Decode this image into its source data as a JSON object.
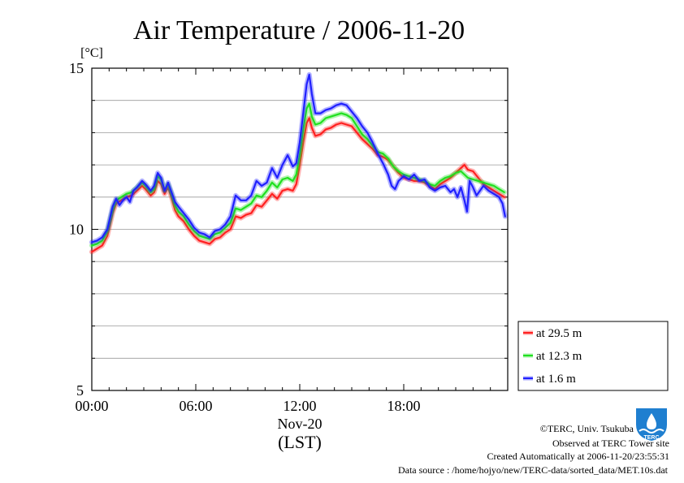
{
  "chart_data": {
    "type": "line",
    "title": "Air Temperature / 2006-11-20",
    "ylabel": "[°C]",
    "xlabel_date": "Nov-20",
    "xlabel_unit": "(LST)",
    "xlim": [
      0,
      24
    ],
    "ylim": [
      5,
      15
    ],
    "x_ticks": [
      {
        "value": 0,
        "label": "00:00"
      },
      {
        "value": 6,
        "label": "06:00"
      },
      {
        "value": 12,
        "label": "12:00"
      },
      {
        "value": 18,
        "label": "18:00"
      }
    ],
    "y_ticks": [
      {
        "value": 5,
        "label": "5"
      },
      {
        "value": 10,
        "label": "10"
      },
      {
        "value": 15,
        "label": "15"
      }
    ],
    "grid": true,
    "legend_position": "bottom-right, outside plot",
    "series": [
      {
        "name": "at 29.5 m",
        "color": "#ff2020",
        "points": [
          [
            0,
            9.3
          ],
          [
            0.3,
            9.4
          ],
          [
            0.6,
            9.5
          ],
          [
            0.9,
            9.8
          ],
          [
            1.2,
            10.5
          ],
          [
            1.4,
            10.8
          ],
          [
            1.7,
            10.9
          ],
          [
            2.0,
            11.0
          ],
          [
            2.3,
            11.05
          ],
          [
            2.6,
            11.2
          ],
          [
            2.9,
            11.35
          ],
          [
            3.1,
            11.25
          ],
          [
            3.4,
            11.05
          ],
          [
            3.6,
            11.15
          ],
          [
            3.8,
            11.5
          ],
          [
            4.0,
            11.4
          ],
          [
            4.2,
            11.1
          ],
          [
            4.4,
            11.3
          ],
          [
            4.6,
            11.0
          ],
          [
            4.8,
            10.6
          ],
          [
            5.0,
            10.4
          ],
          [
            5.3,
            10.25
          ],
          [
            5.6,
            10.0
          ],
          [
            5.9,
            9.8
          ],
          [
            6.2,
            9.65
          ],
          [
            6.5,
            9.6
          ],
          [
            6.8,
            9.55
          ],
          [
            7.1,
            9.7
          ],
          [
            7.4,
            9.75
          ],
          [
            7.7,
            9.9
          ],
          [
            8.0,
            10.0
          ],
          [
            8.3,
            10.4
          ],
          [
            8.6,
            10.35
          ],
          [
            8.9,
            10.45
          ],
          [
            9.2,
            10.5
          ],
          [
            9.5,
            10.75
          ],
          [
            9.8,
            10.7
          ],
          [
            10.1,
            10.9
          ],
          [
            10.4,
            11.1
          ],
          [
            10.7,
            10.95
          ],
          [
            11.0,
            11.2
          ],
          [
            11.3,
            11.25
          ],
          [
            11.6,
            11.2
          ],
          [
            11.8,
            11.4
          ],
          [
            12.0,
            12.0
          ],
          [
            12.2,
            12.7
          ],
          [
            12.4,
            13.3
          ],
          [
            12.55,
            13.45
          ],
          [
            12.7,
            13.15
          ],
          [
            12.9,
            12.9
          ],
          [
            13.2,
            12.95
          ],
          [
            13.5,
            13.1
          ],
          [
            13.8,
            13.15
          ],
          [
            14.1,
            13.25
          ],
          [
            14.4,
            13.3
          ],
          [
            14.7,
            13.25
          ],
          [
            15.0,
            13.2
          ],
          [
            15.3,
            13.0
          ],
          [
            15.6,
            12.8
          ],
          [
            15.9,
            12.65
          ],
          [
            16.2,
            12.5
          ],
          [
            16.5,
            12.3
          ],
          [
            16.8,
            12.25
          ],
          [
            17.1,
            12.15
          ],
          [
            17.4,
            11.95
          ],
          [
            17.7,
            11.75
          ],
          [
            18.0,
            11.6
          ],
          [
            18.3,
            11.55
          ],
          [
            18.6,
            11.5
          ],
          [
            18.9,
            11.5
          ],
          [
            19.2,
            11.45
          ],
          [
            19.5,
            11.35
          ],
          [
            19.8,
            11.25
          ],
          [
            20.1,
            11.4
          ],
          [
            20.4,
            11.5
          ],
          [
            20.7,
            11.6
          ],
          [
            21.0,
            11.75
          ],
          [
            21.3,
            11.9
          ],
          [
            21.5,
            12.0
          ],
          [
            21.7,
            11.85
          ],
          [
            22.0,
            11.8
          ],
          [
            22.3,
            11.6
          ],
          [
            22.6,
            11.4
          ],
          [
            22.9,
            11.3
          ],
          [
            23.2,
            11.2
          ],
          [
            23.5,
            11.1
          ],
          [
            23.8,
            11.0
          ]
        ]
      },
      {
        "name": "at 12.3 m",
        "color": "#20e020",
        "points": [
          [
            0,
            9.5
          ],
          [
            0.3,
            9.55
          ],
          [
            0.6,
            9.65
          ],
          [
            0.9,
            9.95
          ],
          [
            1.2,
            10.6
          ],
          [
            1.4,
            10.9
          ],
          [
            1.7,
            11.0
          ],
          [
            2.0,
            11.1
          ],
          [
            2.3,
            11.15
          ],
          [
            2.6,
            11.3
          ],
          [
            2.9,
            11.45
          ],
          [
            3.1,
            11.35
          ],
          [
            3.4,
            11.15
          ],
          [
            3.6,
            11.25
          ],
          [
            3.8,
            11.65
          ],
          [
            4.0,
            11.55
          ],
          [
            4.2,
            11.2
          ],
          [
            4.4,
            11.4
          ],
          [
            4.6,
            11.1
          ],
          [
            4.8,
            10.75
          ],
          [
            5.0,
            10.55
          ],
          [
            5.3,
            10.4
          ],
          [
            5.6,
            10.15
          ],
          [
            5.9,
            9.95
          ],
          [
            6.2,
            9.8
          ],
          [
            6.5,
            9.75
          ],
          [
            6.8,
            9.7
          ],
          [
            7.1,
            9.85
          ],
          [
            7.4,
            9.9
          ],
          [
            7.7,
            10.05
          ],
          [
            8.0,
            10.2
          ],
          [
            8.3,
            10.65
          ],
          [
            8.6,
            10.6
          ],
          [
            8.9,
            10.7
          ],
          [
            9.2,
            10.8
          ],
          [
            9.5,
            11.05
          ],
          [
            9.8,
            11.0
          ],
          [
            10.1,
            11.2
          ],
          [
            10.4,
            11.45
          ],
          [
            10.7,
            11.3
          ],
          [
            11.0,
            11.55
          ],
          [
            11.3,
            11.6
          ],
          [
            11.6,
            11.5
          ],
          [
            11.8,
            11.7
          ],
          [
            12.0,
            12.3
          ],
          [
            12.2,
            13.1
          ],
          [
            12.4,
            13.75
          ],
          [
            12.55,
            13.9
          ],
          [
            12.7,
            13.5
          ],
          [
            12.9,
            13.25
          ],
          [
            13.2,
            13.3
          ],
          [
            13.5,
            13.45
          ],
          [
            13.8,
            13.5
          ],
          [
            14.1,
            13.55
          ],
          [
            14.4,
            13.6
          ],
          [
            14.7,
            13.55
          ],
          [
            15.0,
            13.45
          ],
          [
            15.3,
            13.2
          ],
          [
            15.6,
            12.95
          ],
          [
            15.9,
            12.8
          ],
          [
            16.2,
            12.6
          ],
          [
            16.5,
            12.4
          ],
          [
            16.8,
            12.35
          ],
          [
            17.1,
            12.2
          ],
          [
            17.4,
            11.95
          ],
          [
            17.7,
            11.8
          ],
          [
            18.0,
            11.7
          ],
          [
            18.3,
            11.65
          ],
          [
            18.6,
            11.6
          ],
          [
            18.9,
            11.55
          ],
          [
            19.2,
            11.5
          ],
          [
            19.5,
            11.4
          ],
          [
            19.8,
            11.35
          ],
          [
            20.1,
            11.5
          ],
          [
            20.4,
            11.6
          ],
          [
            20.7,
            11.65
          ],
          [
            21.0,
            11.75
          ],
          [
            21.3,
            11.8
          ],
          [
            21.5,
            11.7
          ],
          [
            21.7,
            11.6
          ],
          [
            22.0,
            11.55
          ],
          [
            22.3,
            11.5
          ],
          [
            22.6,
            11.45
          ],
          [
            22.9,
            11.4
          ],
          [
            23.2,
            11.35
          ],
          [
            23.5,
            11.25
          ],
          [
            23.8,
            11.15
          ]
        ]
      },
      {
        "name": "at 1.6 m",
        "color": "#2020ff",
        "points": [
          [
            0,
            9.6
          ],
          [
            0.3,
            9.65
          ],
          [
            0.6,
            9.75
          ],
          [
            0.9,
            10.0
          ],
          [
            1.2,
            10.7
          ],
          [
            1.4,
            10.95
          ],
          [
            1.6,
            10.75
          ],
          [
            1.8,
            10.9
          ],
          [
            2.0,
            11.0
          ],
          [
            2.2,
            10.85
          ],
          [
            2.4,
            11.2
          ],
          [
            2.6,
            11.3
          ],
          [
            2.9,
            11.5
          ],
          [
            3.1,
            11.4
          ],
          [
            3.4,
            11.2
          ],
          [
            3.6,
            11.35
          ],
          [
            3.8,
            11.75
          ],
          [
            4.0,
            11.6
          ],
          [
            4.2,
            11.2
          ],
          [
            4.4,
            11.45
          ],
          [
            4.6,
            11.15
          ],
          [
            4.8,
            10.85
          ],
          [
            5.0,
            10.7
          ],
          [
            5.3,
            10.5
          ],
          [
            5.6,
            10.3
          ],
          [
            5.9,
            10.05
          ],
          [
            6.2,
            9.9
          ],
          [
            6.5,
            9.85
          ],
          [
            6.8,
            9.75
          ],
          [
            7.1,
            9.95
          ],
          [
            7.4,
            10.0
          ],
          [
            7.7,
            10.15
          ],
          [
            8.0,
            10.4
          ],
          [
            8.3,
            11.05
          ],
          [
            8.6,
            10.9
          ],
          [
            8.9,
            10.9
          ],
          [
            9.2,
            11.05
          ],
          [
            9.5,
            11.5
          ],
          [
            9.8,
            11.35
          ],
          [
            10.1,
            11.45
          ],
          [
            10.4,
            11.9
          ],
          [
            10.7,
            11.6
          ],
          [
            11.0,
            12.0
          ],
          [
            11.3,
            12.3
          ],
          [
            11.6,
            11.95
          ],
          [
            11.8,
            12.05
          ],
          [
            12.0,
            12.7
          ],
          [
            12.2,
            13.6
          ],
          [
            12.4,
            14.5
          ],
          [
            12.55,
            14.8
          ],
          [
            12.7,
            14.2
          ],
          [
            12.9,
            13.6
          ],
          [
            13.2,
            13.6
          ],
          [
            13.5,
            13.7
          ],
          [
            13.8,
            13.75
          ],
          [
            14.1,
            13.85
          ],
          [
            14.4,
            13.9
          ],
          [
            14.7,
            13.85
          ],
          [
            15.0,
            13.65
          ],
          [
            15.3,
            13.45
          ],
          [
            15.6,
            13.2
          ],
          [
            15.9,
            13.0
          ],
          [
            16.2,
            12.7
          ],
          [
            16.5,
            12.35
          ],
          [
            16.8,
            12.05
          ],
          [
            17.1,
            11.7
          ],
          [
            17.3,
            11.35
          ],
          [
            17.5,
            11.25
          ],
          [
            17.7,
            11.5
          ],
          [
            18.0,
            11.65
          ],
          [
            18.3,
            11.55
          ],
          [
            18.6,
            11.7
          ],
          [
            18.9,
            11.5
          ],
          [
            19.2,
            11.55
          ],
          [
            19.5,
            11.3
          ],
          [
            19.8,
            11.2
          ],
          [
            20.1,
            11.3
          ],
          [
            20.4,
            11.35
          ],
          [
            20.7,
            11.15
          ],
          [
            20.9,
            11.25
          ],
          [
            21.1,
            11.0
          ],
          [
            21.3,
            11.3
          ],
          [
            21.5,
            10.9
          ],
          [
            21.65,
            10.55
          ],
          [
            21.8,
            11.5
          ],
          [
            22.0,
            11.3
          ],
          [
            22.2,
            11.05
          ],
          [
            22.4,
            11.2
          ],
          [
            22.6,
            11.35
          ],
          [
            22.9,
            11.2
          ],
          [
            23.2,
            11.1
          ],
          [
            23.5,
            11.0
          ],
          [
            23.7,
            10.8
          ],
          [
            23.85,
            10.4
          ]
        ]
      }
    ]
  },
  "footer": {
    "copyright": "©TERC, Univ. Tsukuba",
    "observed": "Observed at TERC Tower site",
    "created": "Created Automatically at 2006-11-20/23:55:31",
    "source": "Data source : /home/hojyo/new/TERC-data/sorted_data/MET.10s.dat"
  },
  "logo": {
    "text": "TERC",
    "icon": "terc-logo-icon",
    "color": "#1f7fd0"
  }
}
